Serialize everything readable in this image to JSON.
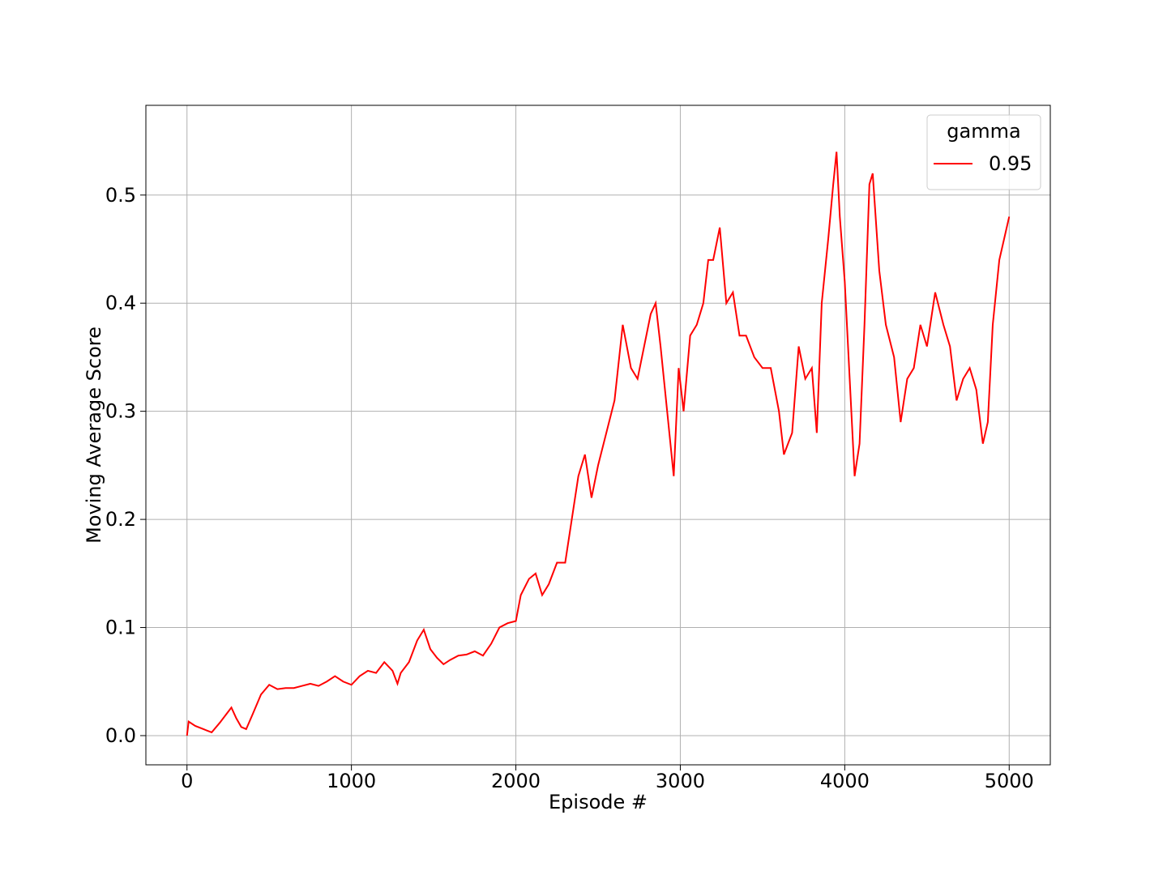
{
  "chart_data": {
    "type": "line",
    "xlabel": "Episode #",
    "ylabel": "Moving Average Score",
    "legend_title": "gamma",
    "legend_loc": "upper right",
    "grid": true,
    "xlim": [
      -250,
      5250
    ],
    "ylim": [
      -0.027,
      0.583
    ],
    "xticks": [
      0,
      1000,
      2000,
      3000,
      4000,
      5000
    ],
    "yticks": [
      {
        "value": 0,
        "label": "0.0"
      },
      0.1,
      0.2,
      0.3,
      0.4,
      0.5
    ],
    "x": [
      0,
      10,
      50,
      100,
      150,
      200,
      250,
      270,
      300,
      330,
      360,
      400,
      450,
      500,
      550,
      600,
      650,
      700,
      750,
      800,
      850,
      900,
      950,
      1000,
      1050,
      1100,
      1150,
      1200,
      1250,
      1280,
      1300,
      1350,
      1400,
      1440,
      1480,
      1520,
      1560,
      1600,
      1650,
      1700,
      1750,
      1800,
      1850,
      1900,
      1950,
      2000,
      2030,
      2080,
      2120,
      2160,
      2200,
      2250,
      2300,
      2340,
      2380,
      2420,
      2460,
      2500,
      2550,
      2600,
      2650,
      2700,
      2740,
      2780,
      2820,
      2850,
      2880,
      2920,
      2960,
      2990,
      3020,
      3060,
      3100,
      3140,
      3170,
      3200,
      3240,
      3280,
      3320,
      3360,
      3400,
      3450,
      3500,
      3550,
      3600,
      3630,
      3680,
      3720,
      3760,
      3800,
      3830,
      3860,
      3900,
      3930,
      3950,
      3970,
      4000,
      4030,
      4060,
      4090,
      4120,
      4150,
      4170,
      4210,
      4250,
      4300,
      4340,
      4380,
      4420,
      4460,
      4500,
      4550,
      4600,
      4640,
      4680,
      4720,
      4760,
      4800,
      4840,
      4870,
      4900,
      4940,
      4970,
      5000
    ],
    "series": [
      {
        "name": "0.95",
        "color": "#ff0000",
        "values": [
          0.0,
          0.013,
          0.009,
          0.006,
          0.003,
          0.012,
          0.022,
          0.026,
          0.016,
          0.008,
          0.006,
          0.02,
          0.038,
          0.047,
          0.043,
          0.044,
          0.044,
          0.046,
          0.048,
          0.046,
          0.05,
          0.055,
          0.05,
          0.047,
          0.055,
          0.06,
          0.058,
          0.068,
          0.06,
          0.048,
          0.058,
          0.068,
          0.088,
          0.098,
          0.08,
          0.072,
          0.066,
          0.07,
          0.074,
          0.075,
          0.078,
          0.074,
          0.085,
          0.1,
          0.104,
          0.106,
          0.13,
          0.145,
          0.15,
          0.13,
          0.14,
          0.16,
          0.16,
          0.2,
          0.24,
          0.26,
          0.22,
          0.25,
          0.28,
          0.31,
          0.38,
          0.34,
          0.33,
          0.36,
          0.39,
          0.4,
          0.36,
          0.3,
          0.24,
          0.34,
          0.3,
          0.37,
          0.38,
          0.4,
          0.44,
          0.44,
          0.47,
          0.4,
          0.41,
          0.37,
          0.37,
          0.35,
          0.34,
          0.34,
          0.3,
          0.26,
          0.28,
          0.36,
          0.33,
          0.34,
          0.28,
          0.4,
          0.46,
          0.51,
          0.54,
          0.48,
          0.42,
          0.33,
          0.24,
          0.27,
          0.38,
          0.51,
          0.52,
          0.43,
          0.38,
          0.35,
          0.29,
          0.33,
          0.34,
          0.38,
          0.36,
          0.41,
          0.38,
          0.36,
          0.31,
          0.33,
          0.34,
          0.32,
          0.27,
          0.29,
          0.38,
          0.44,
          0.46,
          0.48
        ]
      }
    ]
  }
}
